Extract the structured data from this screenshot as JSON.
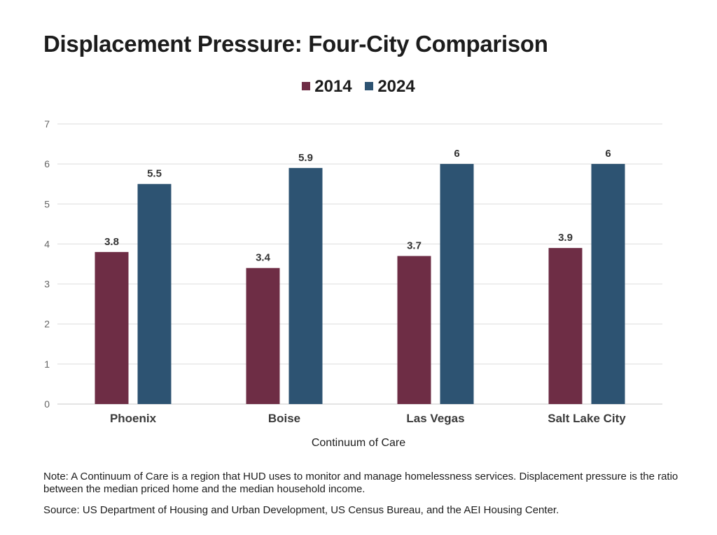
{
  "title": "Displacement Pressure: Four-City Comparison",
  "note": "Note: A Continuum of Care is a region that HUD uses to monitor and manage homelessness services. Displacement pressure is the ratio between the median priced home and the median household income.",
  "source": "Source: US Department of Housing and Urban Development, US Census Bureau, and the AEI Housing Center.",
  "chart_data": {
    "type": "bar",
    "title": "Displacement Pressure: Four-City Comparison",
    "xlabel": "Continuum of Care",
    "ylabel": "",
    "categories": [
      "Phoenix",
      "Boise",
      "Las Vegas",
      "Salt Lake City"
    ],
    "series": [
      {
        "name": "2014",
        "values": [
          3.8,
          3.4,
          3.7,
          3.9
        ],
        "color": "#6e2d45"
      },
      {
        "name": "2024",
        "values": [
          5.5,
          5.9,
          6,
          6
        ],
        "color": "#2d5372"
      }
    ],
    "ylim": [
      0,
      7
    ],
    "yticks": [
      0,
      1,
      2,
      3,
      4,
      5,
      6,
      7
    ],
    "grid": true,
    "legend": "top-center",
    "data_labels": true
  }
}
